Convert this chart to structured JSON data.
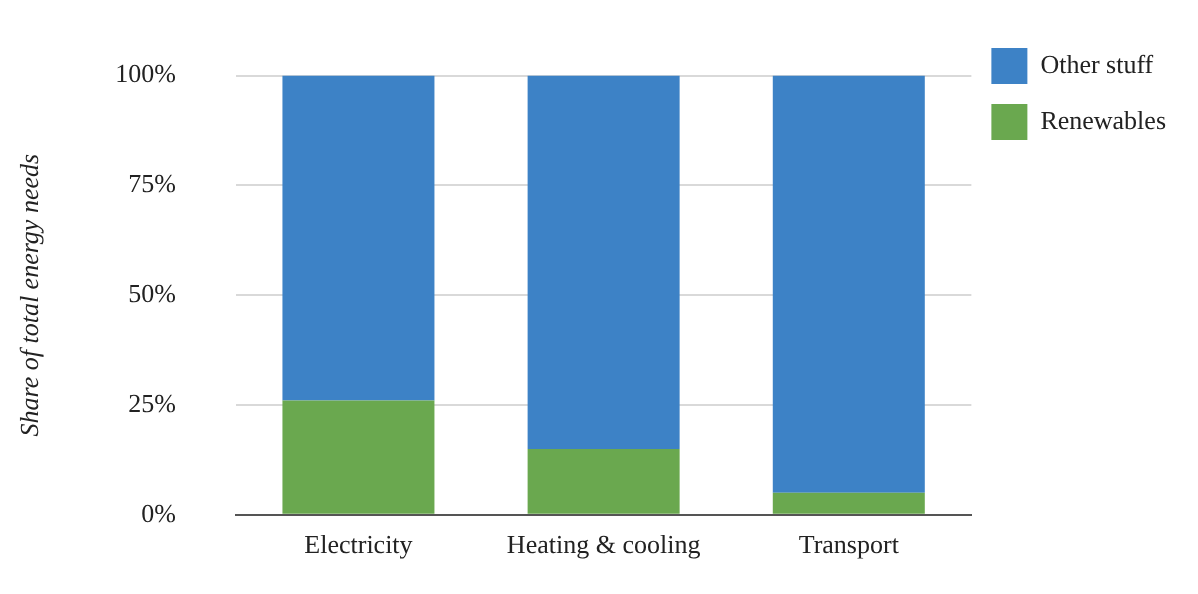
{
  "chart_data": {
    "type": "bar",
    "ylabel": "Share of total energy needs",
    "categories": [
      "Electricity",
      "Heating & cooling",
      "Transport"
    ],
    "stacked": true,
    "series": [
      {
        "name": "Renewables",
        "color": "#6aa84f",
        "values": [
          26,
          15,
          5
        ]
      },
      {
        "name": "Other stuff",
        "color": "#3d82c6",
        "values": [
          74,
          85,
          95
        ]
      }
    ],
    "ylim": [
      0,
      100
    ],
    "yticks": [
      {
        "value": 0,
        "label": "0%"
      },
      {
        "value": 25,
        "label": "25%"
      },
      {
        "value": 50,
        "label": "50%"
      },
      {
        "value": 75,
        "label": "75%"
      },
      {
        "value": 100,
        "label": "100%"
      }
    ],
    "grid": "y",
    "legend": "top right"
  }
}
